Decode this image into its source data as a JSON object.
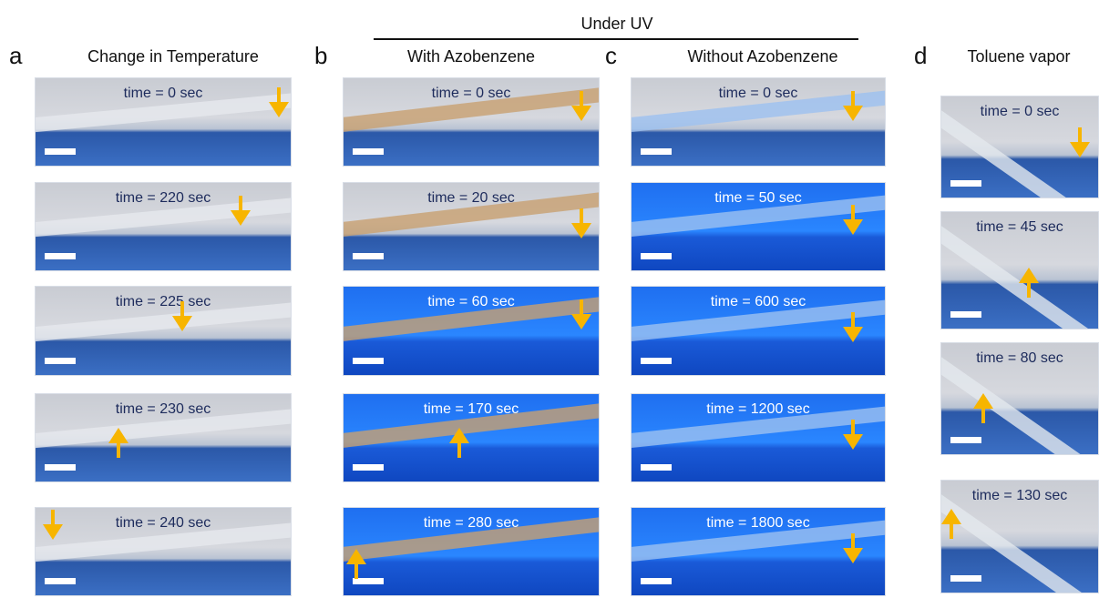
{
  "header": "Under UV",
  "panels": [
    {
      "letter": "a",
      "title": "Change in Temperature",
      "frames": [
        "time = 0 sec",
        "time = 220 sec",
        "time = 225 sec",
        "time = 230 sec",
        "time = 240 sec"
      ]
    },
    {
      "letter": "b",
      "title": "With Azobenzene",
      "frames": [
        "time = 0 sec",
        "time = 20 sec",
        "time = 60 sec",
        "time = 170 sec",
        "time = 280 sec"
      ]
    },
    {
      "letter": "c",
      "title": "Without Azobenzene",
      "frames": [
        "time = 0 sec",
        "time = 50 sec",
        "time = 600 sec",
        "time = 1200 sec",
        "time = 1800 sec"
      ]
    },
    {
      "letter": "d",
      "title": "Toluene vapor",
      "frames": [
        "time = 0 sec",
        "time = 45 sec",
        "time = 80 sec",
        "time = 130 sec"
      ]
    }
  ]
}
